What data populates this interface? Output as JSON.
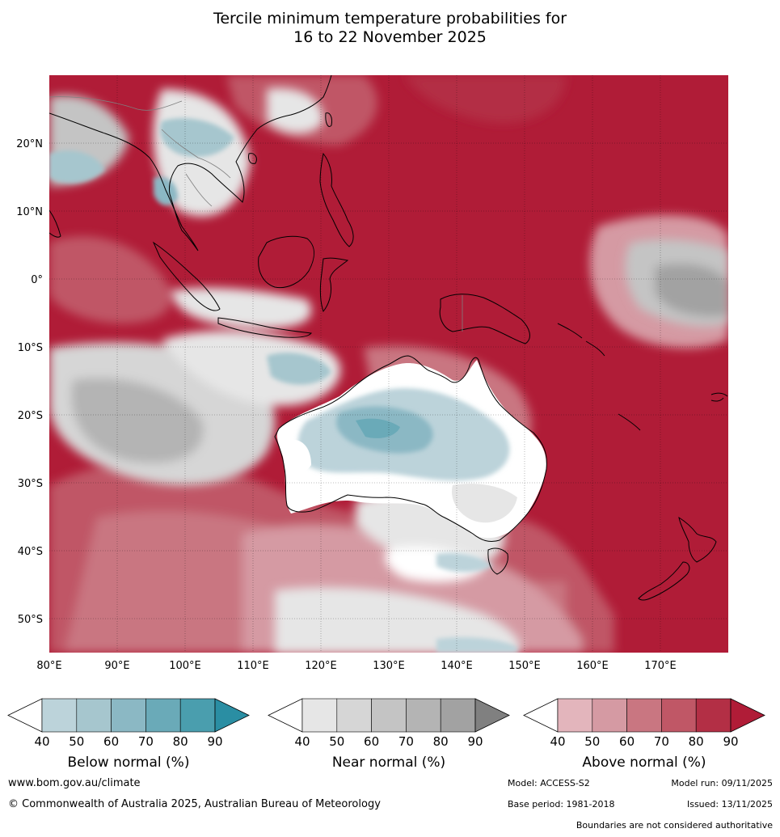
{
  "title": {
    "line1": "Tercile minimum temperature probabilities for",
    "line2": "16 to 22 November 2025"
  },
  "map": {
    "lon_labels": [
      "80°E",
      "90°E",
      "100°E",
      "110°E",
      "120°E",
      "130°E",
      "140°E",
      "150°E",
      "160°E",
      "170°E"
    ],
    "lat_labels": [
      "20°N",
      "10°N",
      "0°",
      "10°S",
      "20°S",
      "30°S",
      "40°S",
      "50°S"
    ],
    "lon_range": [
      80,
      180
    ],
    "lat_range": [
      -55,
      30
    ],
    "ocean_fill_color": "#b01c37",
    "land_outline_color": "#000000",
    "border_color": "#808080",
    "grid": true
  },
  "legends": [
    {
      "title": "Below normal (%)",
      "ticks": [
        "40",
        "50",
        "60",
        "70",
        "80",
        "90"
      ],
      "colors": [
        "#ffffff",
        "#bcd3da",
        "#a6c6ce",
        "#8bb8c4",
        "#6aaab8",
        "#4a9eae",
        "#2a8ea3"
      ]
    },
    {
      "title": "Near normal (%)",
      "ticks": [
        "40",
        "50",
        "60",
        "70",
        "80",
        "90"
      ],
      "colors": [
        "#ffffff",
        "#e6e6e6",
        "#d6d6d6",
        "#c4c4c4",
        "#b4b4b4",
        "#a2a2a2",
        "#808080"
      ]
    },
    {
      "title": "Above normal (%)",
      "ticks": [
        "40",
        "50",
        "60",
        "70",
        "80",
        "90"
      ],
      "colors": [
        "#ffffff",
        "#e3b5bc",
        "#d59aa3",
        "#c97681",
        "#c05766",
        "#b32f45",
        "#b01c37"
      ]
    }
  ],
  "footer": {
    "website": "www.bom.gov.au/climate",
    "copyright": "© Commonwealth of Australia 2025, Australian Bureau of Meteorology",
    "model": "Model: ACCESS-S2",
    "model_run": "Model run: 09/11/2025",
    "base_period": "Base period: 1981-2018",
    "issued": "Issued: 13/11/2025",
    "disclaimer": "Boundaries are not considered authoritative"
  }
}
